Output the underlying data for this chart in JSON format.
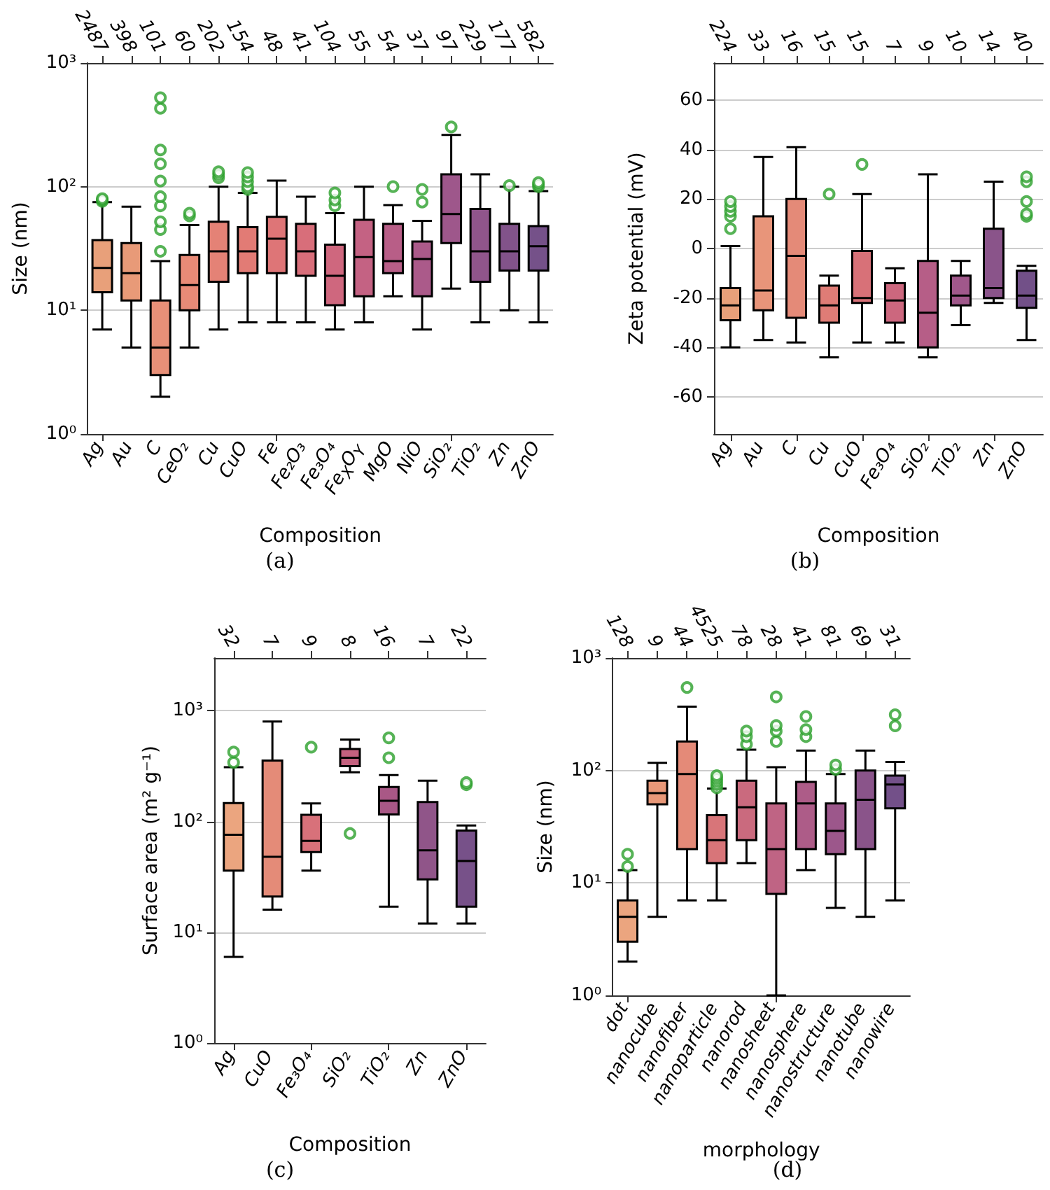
{
  "chart_data": [
    {
      "type": "box",
      "title": "(a)",
      "xlabel": "Composition",
      "ylabel": "Size (nm)",
      "log": "y",
      "grid": "y",
      "categories": [
        "Ag",
        "Au",
        "C",
        "CeO₂",
        "Cu",
        "CuO",
        "Fe",
        "Fe₂O₃",
        "Fe₃O₄",
        "Fe$_{X}$O$_{Y}$",
        "MgO",
        "NiO",
        "SiO₂",
        "TiO₂",
        "Zn",
        "ZnO"
      ],
      "annotations": [
        "2487",
        "398",
        "101",
        "60",
        "202",
        "154",
        "48",
        "41",
        "104",
        "55",
        "54",
        "37",
        "97",
        "229",
        "177",
        "582"
      ],
      "colors": [
        "#e8a07a",
        "#e89a78",
        "#e89078",
        "#e88a77",
        "#e48276",
        "#e27b75",
        "#de7577",
        "#d86e7a",
        "#cf677e",
        "#c46283",
        "#b85e87",
        "#ab5a8a",
        "#9e578b",
        "#90558b",
        "#82538a",
        "#755189"
      ],
      "ylim": [
        1,
        1000
      ],
      "yticks": [
        {
          "value": 1,
          "label": "10⁰"
        },
        {
          "value": 10,
          "label": "10¹"
        },
        {
          "value": 100,
          "label": "10²"
        },
        {
          "value": 1000,
          "label": "10³"
        }
      ],
      "boxes": [
        {
          "low": 7,
          "q1": 14,
          "median": 22,
          "q3": 37,
          "high": 75,
          "outliers": [
            76,
            78,
            80
          ]
        },
        {
          "low": 5,
          "q1": 12,
          "median": 20,
          "q3": 35,
          "high": 69
        },
        {
          "low": 2,
          "q1": 3,
          "median": 5,
          "q3": 12,
          "high": 25,
          "outliers": [
            30,
            45,
            52,
            70,
            83,
            111,
            153,
            198,
            430,
            524
          ]
        },
        {
          "low": 5,
          "q1": 10,
          "median": 16,
          "q3": 28,
          "high": 49,
          "outliers": [
            58,
            61
          ]
        },
        {
          "low": 7,
          "q1": 17,
          "median": 30,
          "q3": 52,
          "high": 100,
          "outliers": [
            118,
            125,
            132
          ]
        },
        {
          "low": 8,
          "q1": 20,
          "median": 30,
          "q3": 47,
          "high": 89,
          "outliers": [
            95,
            100,
            110,
            120,
            130
          ]
        },
        {
          "low": 8,
          "q1": 20,
          "median": 38,
          "q3": 57,
          "high": 112
        },
        {
          "low": 8,
          "q1": 19,
          "median": 30,
          "q3": 50,
          "high": 83
        },
        {
          "low": 7,
          "q1": 11,
          "median": 19,
          "q3": 34,
          "high": 61,
          "outliers": [
            70,
            78,
            89
          ]
        },
        {
          "low": 8,
          "q1": 13,
          "median": 27,
          "q3": 54,
          "high": 100
        },
        {
          "low": 13,
          "q1": 20,
          "median": 25,
          "q3": 50,
          "high": 71,
          "outliers": [
            100
          ]
        },
        {
          "low": 7,
          "q1": 13,
          "median": 26,
          "q3": 36,
          "high": 53,
          "outliers": [
            75,
            95
          ]
        },
        {
          "low": 15,
          "q1": 35,
          "median": 60,
          "q3": 126,
          "high": 262,
          "outliers": [
            304
          ]
        },
        {
          "low": 8,
          "q1": 17,
          "median": 30,
          "q3": 66,
          "high": 126
        },
        {
          "low": 10,
          "q1": 21,
          "median": 30,
          "q3": 50,
          "high": 100,
          "outliers": [
            102
          ]
        },
        {
          "low": 8,
          "q1": 21,
          "median": 33,
          "q3": 48,
          "high": 92,
          "outliers": [
            100,
            104,
            108
          ]
        }
      ]
    },
    {
      "type": "box",
      "title": "(b)",
      "xlabel": "Composition",
      "ylabel": "Zeta potential (mV)",
      "grid": "y",
      "categories": [
        "Ag",
        "Au",
        "C",
        "Cu",
        "CuO",
        "Fe₃O₄",
        "SiO₂",
        "TiO₂",
        "Zn",
        "ZnO"
      ],
      "annotations": [
        "224",
        "33",
        "16",
        "15",
        "15",
        "7",
        "9",
        "10",
        "14",
        "40"
      ],
      "colors": [
        "#e8a07a",
        "#e8957a",
        "#e48a78",
        "#df7c76",
        "#d87178",
        "#cc677e",
        "#b65e87",
        "#a0588b",
        "#8a548a",
        "#725088"
      ],
      "ylim": [
        -75,
        75
      ],
      "yticks": [
        -60,
        -40,
        -20,
        0,
        20,
        40,
        60
      ],
      "boxes": [
        {
          "low": -40,
          "q1": -29,
          "median": -23,
          "q3": -16,
          "high": 1,
          "outliers": [
            8,
            13,
            15,
            17,
            19
          ]
        },
        {
          "low": -37,
          "q1": -25,
          "median": -17,
          "q3": 13,
          "high": 37
        },
        {
          "low": -38,
          "q1": -28,
          "median": -3,
          "q3": 20,
          "high": 41
        },
        {
          "low": -44,
          "q1": -30,
          "median": -23,
          "q3": -15,
          "high": -11,
          "outliers": [
            22
          ]
        },
        {
          "low": -38,
          "q1": -22,
          "median": -20,
          "q3": -1,
          "high": 22,
          "outliers": [
            34
          ]
        },
        {
          "low": -38,
          "q1": -30,
          "median": -21,
          "q3": -14,
          "high": -8
        },
        {
          "low": -44,
          "q1": -40,
          "median": -26,
          "q3": -5,
          "high": 30
        },
        {
          "low": -31,
          "q1": -23,
          "median": -19,
          "q3": -11,
          "high": -5
        },
        {
          "low": -22,
          "q1": -20,
          "median": -16,
          "q3": 8,
          "high": 27
        },
        {
          "low": -37,
          "q1": -24,
          "median": -19,
          "q3": -9,
          "high": -7,
          "outliers": [
            13,
            14,
            19,
            27,
            29
          ]
        }
      ]
    },
    {
      "type": "box",
      "title": "(c)",
      "xlabel": "Composition",
      "ylabel": "Surface area (m² g⁻¹)",
      "log": "y",
      "grid": "y",
      "categories": [
        "Ag",
        "CuO",
        "Fe₃O₄",
        "SiO₂",
        "TiO₂",
        "Zn",
        "ZnO"
      ],
      "annotations": [
        "32",
        "7",
        "9",
        "8",
        "16",
        "7",
        "22"
      ],
      "colors": [
        "#eba57f",
        "#e48b78",
        "#d8717a",
        "#c4617f",
        "#a95886",
        "#905589",
        "#775189"
      ],
      "ylim": [
        1,
        3000
      ],
      "yticks": [
        {
          "value": 1,
          "label": "10⁰"
        },
        {
          "value": 10,
          "label": "10¹"
        },
        {
          "value": 100,
          "label": "10²"
        },
        {
          "value": 1000,
          "label": "10³"
        }
      ],
      "boxes": [
        {
          "low": 6,
          "q1": 36,
          "median": 76,
          "q3": 147,
          "high": 310,
          "outliers": [
            342,
            425
          ]
        },
        {
          "low": 16,
          "q1": 21,
          "median": 48,
          "q3": 355,
          "high": 800
        },
        {
          "low": 36,
          "q1": 53,
          "median": 67,
          "q3": 115,
          "high": 146,
          "outliers": [
            470
          ]
        },
        {
          "low": 279,
          "q1": 316,
          "median": 377,
          "q3": 452,
          "high": 550,
          "outliers": [
            78
          ]
        },
        {
          "low": 17,
          "q1": 116,
          "median": 154,
          "q3": 205,
          "high": 263,
          "outliers": [
            377,
            570
          ]
        },
        {
          "low": 12,
          "q1": 30,
          "median": 55,
          "q3": 150,
          "high": 234
        },
        {
          "low": 12,
          "q1": 17,
          "median": 44,
          "q3": 83,
          "high": 92,
          "outliers": [
            215,
            225
          ]
        }
      ]
    },
    {
      "type": "box",
      "title": "(d)",
      "xlabel": "morphology",
      "ylabel": "Size (nm)",
      "log": "y",
      "grid": "y",
      "categories": [
        "dot",
        "nanocube",
        "nanofiber",
        "nanoparticle",
        "nanorod",
        "nanosheet",
        "nanosphere",
        "nanostructure",
        "nanotube",
        "nanowire"
      ],
      "annotations": [
        "128",
        "9",
        "44",
        "4525",
        "78",
        "28",
        "41",
        "81",
        "69",
        "31"
      ],
      "colors": [
        "#eba57f",
        "#e89878",
        "#e48a78",
        "#d87579",
        "#ca6a7e",
        "#bf6484",
        "#ad5c88",
        "#9c578b",
        "#8a548a",
        "#735089"
      ],
      "ylim": [
        1,
        1000
      ],
      "yticks": [
        {
          "value": 1,
          "label": "10⁰"
        },
        {
          "value": 10,
          "label": "10¹"
        },
        {
          "value": 100,
          "label": "10²"
        },
        {
          "value": 1000,
          "label": "10³"
        }
      ],
      "boxes": [
        {
          "low": 2,
          "q1": 3,
          "median": 5,
          "q3": 7,
          "high": 13,
          "outliers": [
            14,
            18
          ]
        },
        {
          "low": 5,
          "q1": 50,
          "median": 63,
          "q3": 81,
          "high": 117
        },
        {
          "low": 7,
          "q1": 20,
          "median": 93,
          "q3": 181,
          "high": 369,
          "outliers": [
            547
          ]
        },
        {
          "low": 7,
          "q1": 15,
          "median": 24,
          "q3": 40,
          "high": 69,
          "outliers": [
            70,
            75,
            80,
            85,
            90
          ]
        },
        {
          "low": 15,
          "q1": 24,
          "median": 47,
          "q3": 81,
          "high": 153,
          "outliers": [
            171,
            200,
            224
          ]
        },
        {
          "low": 1,
          "q1": 8,
          "median": 20,
          "q3": 51,
          "high": 107,
          "outliers": [
            181,
            224,
            251,
            451
          ]
        },
        {
          "low": 13,
          "q1": 20,
          "median": 51,
          "q3": 79,
          "high": 150,
          "outliers": [
            200,
            231,
            302
          ]
        },
        {
          "low": 6,
          "q1": 18,
          "median": 29,
          "q3": 51,
          "high": 93,
          "outliers": [
            102,
            112
          ]
        },
        {
          "low": 5,
          "q1": 20,
          "median": 55,
          "q3": 100,
          "high": 150
        },
        {
          "low": 7,
          "q1": 46,
          "median": 75,
          "q3": 90,
          "high": 119,
          "outliers": [
            249,
            313
          ]
        }
      ]
    }
  ]
}
